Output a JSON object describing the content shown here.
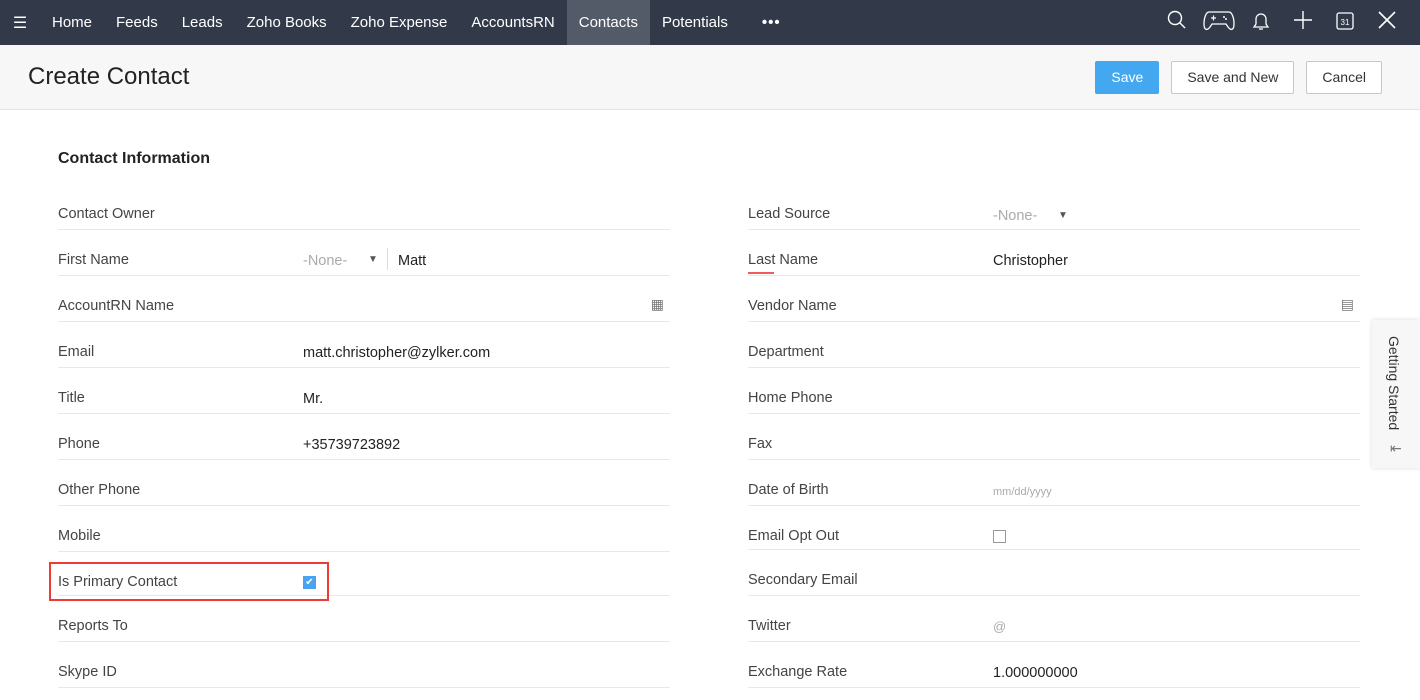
{
  "nav": {
    "items": [
      "Home",
      "Feeds",
      "Leads",
      "Zoho Books",
      "Zoho Expense",
      "AccountsRN",
      "Contacts",
      "Potentials"
    ],
    "active": "Contacts",
    "more": "•••"
  },
  "header": {
    "title": "Create Contact",
    "save": "Save",
    "save_new": "Save and New",
    "cancel": "Cancel"
  },
  "section": "Contact Information",
  "left": [
    {
      "label": "Contact Owner"
    },
    {
      "label": "First Name",
      "salutation": "-None-",
      "value": "Matt"
    },
    {
      "label": "AccountRN Name"
    },
    {
      "label": "Email",
      "value": "matt.christopher@zylker.com"
    },
    {
      "label": "Title",
      "value": "Mr."
    },
    {
      "label": "Phone",
      "value": "+35739723892"
    },
    {
      "label": "Other Phone"
    },
    {
      "label": "Mobile"
    },
    {
      "label": "Is Primary Contact",
      "checked": true
    },
    {
      "label": "Reports To"
    },
    {
      "label": "Skype ID"
    }
  ],
  "right": [
    {
      "label": "Lead Source",
      "value": "-None-"
    },
    {
      "label": "Last Name",
      "value": "Christopher"
    },
    {
      "label": "Vendor Name"
    },
    {
      "label": "Department"
    },
    {
      "label": "Home Phone"
    },
    {
      "label": "Fax"
    },
    {
      "label": "Date of Birth",
      "placeholder": "mm/dd/yyyy"
    },
    {
      "label": "Email Opt Out",
      "checked": false
    },
    {
      "label": "Secondary Email"
    },
    {
      "label": "Twitter",
      "prefix": "@"
    },
    {
      "label": "Exchange Rate",
      "value": "1.000000000"
    }
  ],
  "getting_started": "Getting Started",
  "colors": {
    "nav": "#323a4a",
    "primary": "#43a8ef",
    "highlight": "#ef3b36"
  }
}
